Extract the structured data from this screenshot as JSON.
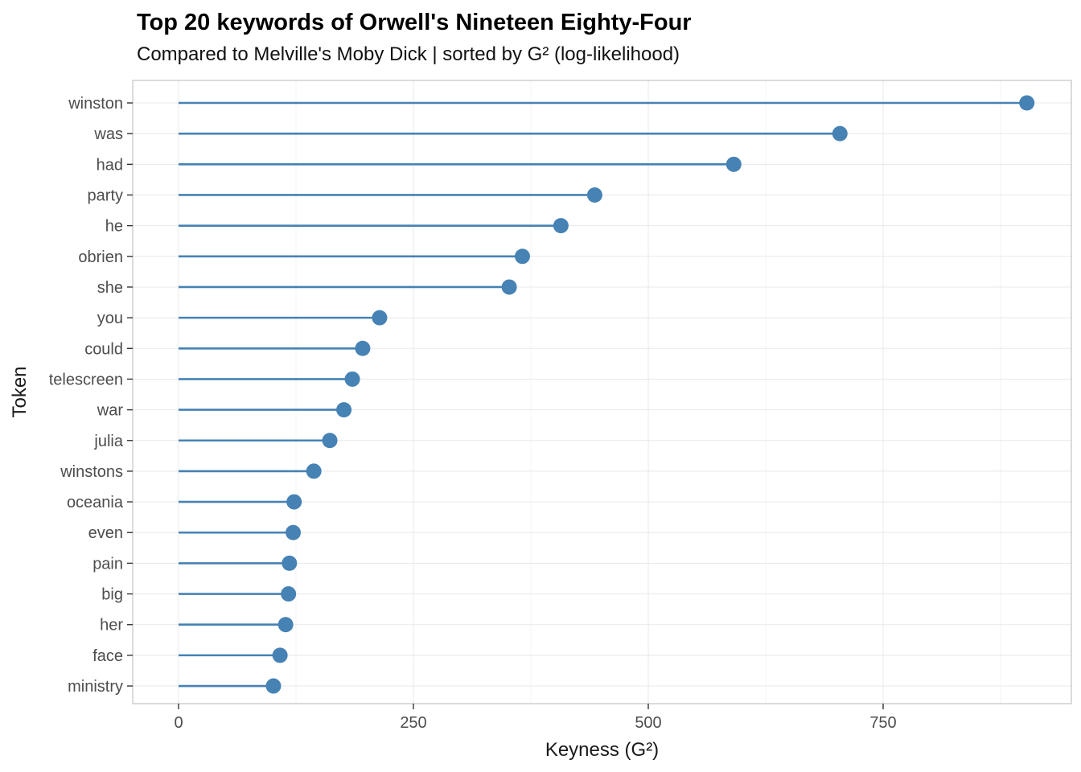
{
  "chart_data": {
    "type": "lollipop",
    "title": "Top 20 keywords of Orwell's Nineteen Eighty-Four",
    "subtitle": "Compared to Melville's Moby Dick | sorted by G² (log-likelihood)",
    "xlabel": "Keyness (G²)",
    "ylabel": "Token",
    "categories": [
      "winston",
      "was",
      "had",
      "party",
      "he",
      "obrien",
      "she",
      "you",
      "could",
      "telescreen",
      "war",
      "julia",
      "winstons",
      "oceania",
      "even",
      "pain",
      "big",
      "her",
      "face",
      "ministry"
    ],
    "values": [
      903,
      704,
      591,
      443,
      407,
      366,
      352,
      214,
      196,
      185,
      176,
      161,
      144,
      123,
      122,
      118,
      117,
      114,
      108,
      101
    ],
    "x_ticks": [
      0,
      250,
      500,
      750
    ],
    "x_minor_ticks": [
      125,
      375,
      625,
      875
    ],
    "xlim": [
      -48,
      948
    ],
    "grid": true,
    "legend": false,
    "colors": {
      "point": "#4682B4",
      "stem": "#4682B4",
      "grid_major": "#e8e8e8",
      "grid_minor": "#f4f4f4",
      "panel_border": "#c3c3c3",
      "tick": "#333333",
      "tick_label": "#4d4d4d",
      "axis_title": "#1a1a1a"
    }
  }
}
